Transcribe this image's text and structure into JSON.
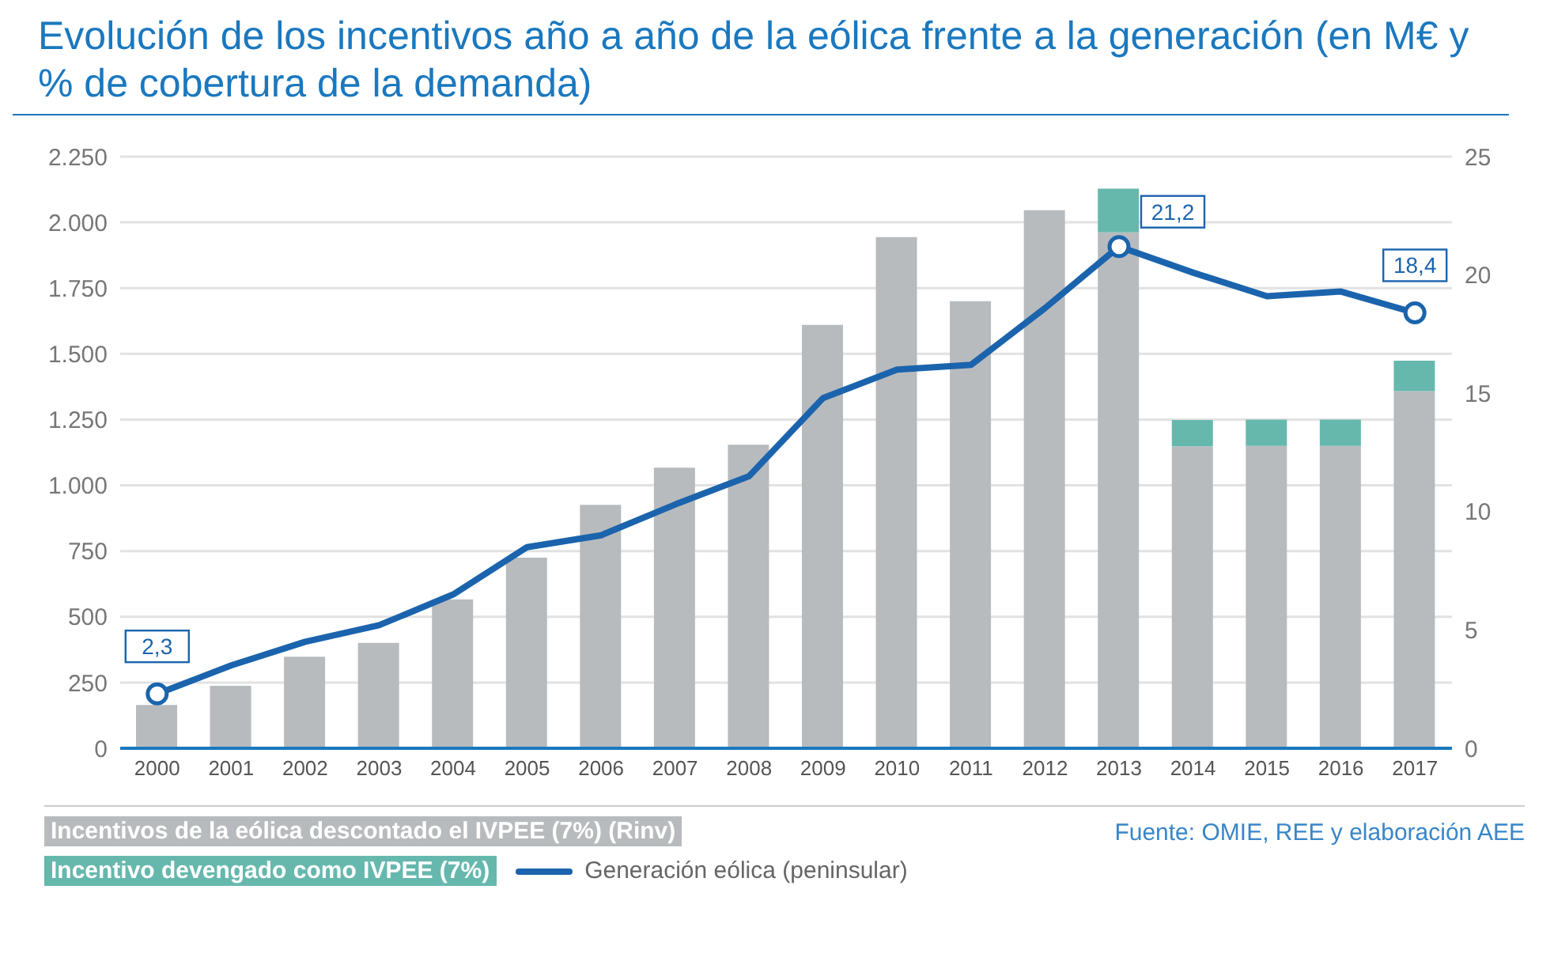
{
  "chart_data": {
    "type": "bar",
    "title": "Evolución de los incentivos año a año de la eólica frente a la generación (en M€ y % de cobertura de la demanda)",
    "categories": [
      "2000",
      "2001",
      "2002",
      "2003",
      "2004",
      "2005",
      "2006",
      "2007",
      "2008",
      "2009",
      "2010",
      "2011",
      "2012",
      "2013",
      "2014",
      "2015",
      "2016",
      "2017"
    ],
    "stacked": true,
    "series": [
      {
        "name": "Incentivos de la eólica descontado el IVPEE (7%) (Rinv)",
        "color": "#b8bbbe",
        "values": [
          165,
          238,
          348,
          401,
          566,
          725,
          926,
          1067,
          1154,
          1610,
          1944,
          1700,
          2046,
          1962,
          1148,
          1150,
          1150,
          1358
        ]
      },
      {
        "name": "Incentivo devengado como IVPEE (7%)",
        "color": "#66b8ad",
        "values": [
          null,
          null,
          null,
          null,
          null,
          null,
          null,
          null,
          null,
          null,
          null,
          null,
          null,
          166,
          100,
          100,
          100,
          116
        ]
      },
      {
        "name": "Generación eólica (peninsular)",
        "type": "line",
        "axis": "y2",
        "color": "#1b64ad",
        "values": [
          2.3,
          3.5,
          4.5,
          5.2,
          6.5,
          8.5,
          9.0,
          10.3,
          11.5,
          14.8,
          16.0,
          16.2,
          18.6,
          21.2,
          20.1,
          19.1,
          19.3,
          18.4
        ],
        "value_labels": [
          "2,3",
          null,
          null,
          null,
          null,
          null,
          null,
          null,
          null,
          null,
          null,
          null,
          null,
          "21,2",
          null,
          null,
          null,
          "18,4"
        ]
      }
    ],
    "ylim": [
      0,
      2250
    ],
    "yticks": [
      0,
      250,
      500,
      750,
      {
        "value": 1000,
        "label": "1.000"
      },
      {
        "value": 1250,
        "label": "1.250"
      },
      {
        "value": 1500,
        "label": "1.500"
      },
      {
        "value": 1750,
        "label": "1.750"
      },
      {
        "value": 2000,
        "label": "2.000"
      },
      {
        "value": 2250,
        "label": "2.250"
      }
    ],
    "y2lim": [
      0,
      25
    ],
    "y2ticks": [
      0,
      5,
      10,
      15,
      20,
      25
    ],
    "grid": "y",
    "legend": "bottom",
    "annotations": [
      "Fuente: OMIE, REE y elaboración AEE"
    ]
  }
}
